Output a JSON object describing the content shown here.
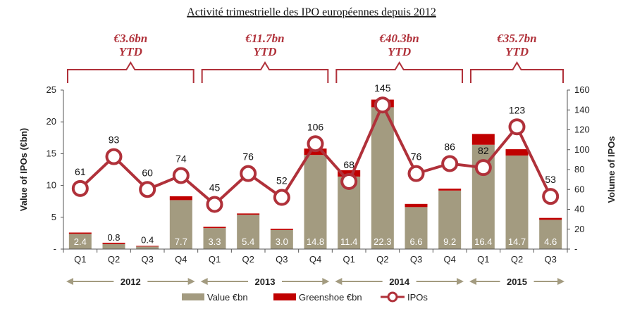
{
  "chart_data": {
    "type": "bar",
    "title": "Activité trimestrielle des IPO européennes depuis 2012",
    "categories": [
      "Q1",
      "Q2",
      "Q3",
      "Q4",
      "Q1",
      "Q2",
      "Q3",
      "Q4",
      "Q1",
      "Q2",
      "Q3",
      "Q4",
      "Q1",
      "Q2",
      "Q3"
    ],
    "years": [
      {
        "label": "2012",
        "start": 0,
        "end": 3,
        "ytd": "€3.6bn",
        "ytd_sub": "YTD"
      },
      {
        "label": "2013",
        "start": 4,
        "end": 7,
        "ytd": "€11.7bn",
        "ytd_sub": "YTD"
      },
      {
        "label": "2014",
        "start": 8,
        "end": 11,
        "ytd": "€40.3bn",
        "ytd_sub": "YTD"
      },
      {
        "label": "2015",
        "start": 12,
        "end": 14,
        "ytd": "€35.7bn",
        "ytd_sub": "YTD"
      }
    ],
    "series": [
      {
        "name": "Value €bn",
        "values": [
          2.4,
          0.8,
          0.4,
          7.7,
          3.3,
          5.4,
          3.0,
          14.8,
          11.4,
          22.3,
          6.6,
          9.2,
          16.4,
          14.7,
          4.6
        ],
        "labels": [
          "2.4",
          "0.8",
          "0.4",
          "7.7",
          "3.3",
          "5.4",
          "3.0",
          "14.8",
          "11.4",
          "22.3",
          "6.6",
          "9.2",
          "16.4",
          "14.7",
          "4.6"
        ]
      },
      {
        "name": "Greenshoe €bn",
        "values": [
          0.2,
          0.2,
          0.1,
          0.6,
          0.2,
          0.2,
          0.2,
          1.0,
          1.0,
          1.2,
          0.5,
          0.3,
          1.7,
          1.0,
          0.3
        ]
      },
      {
        "name": "IPOs",
        "values": [
          61,
          93,
          60,
          74,
          45,
          76,
          52,
          106,
          68,
          145,
          76,
          86,
          82,
          123,
          53
        ]
      }
    ],
    "ylabel": "Value of IPOs (€bn)",
    "y2label": "Volume of IPOs",
    "ylim": [
      0,
      25
    ],
    "y2lim": [
      0,
      160
    ],
    "yticks": [
      0,
      5,
      10,
      15,
      20,
      25
    ],
    "yticklabels": [
      "-",
      "5",
      "10",
      "15",
      "20",
      "25"
    ],
    "y2ticks": [
      0,
      20,
      40,
      60,
      80,
      100,
      120,
      140,
      160
    ],
    "y2ticklabels": [
      "-",
      "20",
      "40",
      "60",
      "80",
      "100",
      "120",
      "140",
      "160"
    ],
    "legend_position": "bottom",
    "colors": {
      "value": "#a39b80",
      "greenshoe": "#c00000",
      "ipos": "#b0313a",
      "ytd_text": "#b0313a",
      "bracket": "#b0313a",
      "arrow": "#a39b80"
    }
  }
}
